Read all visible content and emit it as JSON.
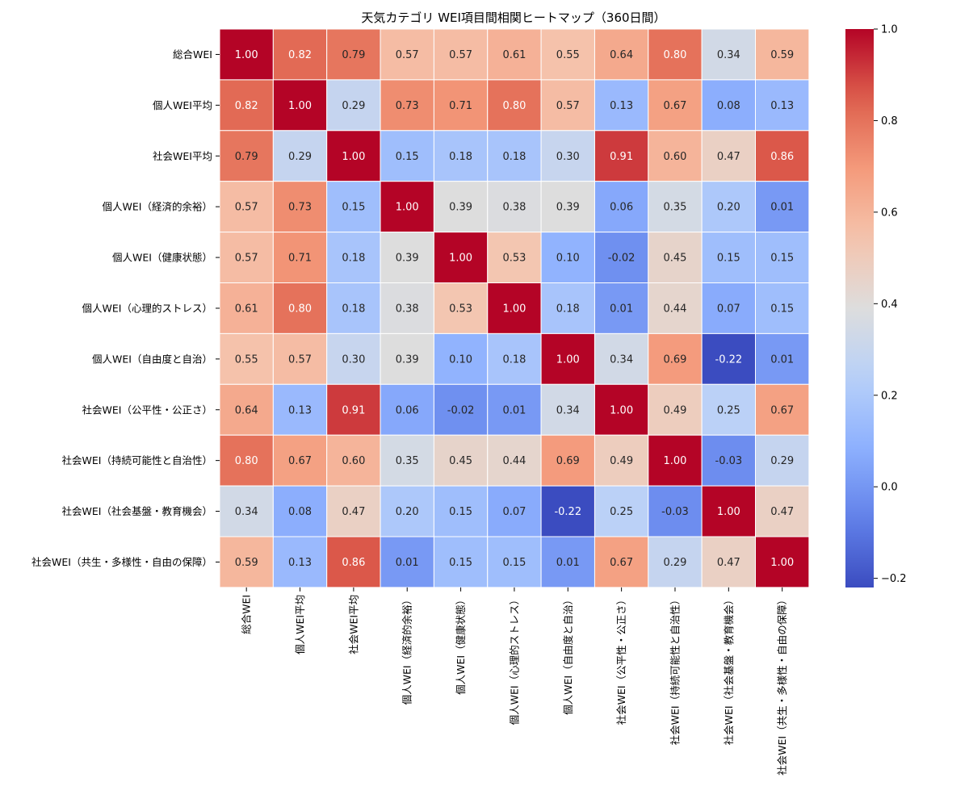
{
  "chart_data": {
    "type": "heatmap",
    "title": "天気カテゴリ WEI項目間相関ヒートマップ（360日間）",
    "labels": [
      "総合WEI",
      "個人WEI平均",
      "社会WEI平均",
      "個人WEI（経済的余裕）",
      "個人WEI（健康状態）",
      "個人WEI（心理的ストレス）",
      "個人WEI（自由度と自治）",
      "社会WEI（公平性・公正さ）",
      "社会WEI（持続可能性と自治性）",
      "社会WEI（社会基盤・教育機会）",
      "社会WEI（共生・多様性・自由の保障）"
    ],
    "matrix": [
      [
        1.0,
        0.82,
        0.79,
        0.57,
        0.57,
        0.61,
        0.55,
        0.64,
        0.8,
        0.34,
        0.59
      ],
      [
        0.82,
        1.0,
        0.29,
        0.73,
        0.71,
        0.8,
        0.57,
        0.13,
        0.67,
        0.08,
        0.13
      ],
      [
        0.79,
        0.29,
        1.0,
        0.15,
        0.18,
        0.18,
        0.3,
        0.91,
        0.6,
        0.47,
        0.86
      ],
      [
        0.57,
        0.73,
        0.15,
        1.0,
        0.39,
        0.38,
        0.39,
        0.06,
        0.35,
        0.2,
        0.01
      ],
      [
        0.57,
        0.71,
        0.18,
        0.39,
        1.0,
        0.53,
        0.1,
        -0.02,
        0.45,
        0.15,
        0.15
      ],
      [
        0.61,
        0.8,
        0.18,
        0.38,
        0.53,
        1.0,
        0.18,
        0.01,
        0.44,
        0.07,
        0.15
      ],
      [
        0.55,
        0.57,
        0.3,
        0.39,
        0.1,
        0.18,
        1.0,
        0.34,
        0.69,
        -0.22,
        0.01
      ],
      [
        0.64,
        0.13,
        0.91,
        0.06,
        -0.02,
        0.01,
        0.34,
        1.0,
        0.49,
        0.25,
        0.67
      ],
      [
        0.8,
        0.67,
        0.6,
        0.35,
        0.45,
        0.44,
        0.69,
        0.49,
        1.0,
        -0.03,
        0.29
      ],
      [
        0.34,
        0.08,
        0.47,
        0.2,
        0.15,
        0.07,
        -0.22,
        0.25,
        -0.03,
        1.0,
        0.47
      ],
      [
        0.59,
        0.13,
        0.86,
        0.01,
        0.15,
        0.15,
        0.01,
        0.67,
        0.29,
        0.47,
        1.0
      ]
    ],
    "value_range": [
      -0.22,
      1.0
    ],
    "colormap": "coolwarm",
    "colorbar_ticks": [
      "1.0",
      "0.8",
      "0.6",
      "0.4",
      "0.2",
      "0.0",
      "−0.2"
    ],
    "colorbar_tick_values": [
      1.0,
      0.8,
      0.6,
      0.4,
      0.2,
      0.0,
      -0.2
    ],
    "annotate_format": "2 decimals"
  }
}
